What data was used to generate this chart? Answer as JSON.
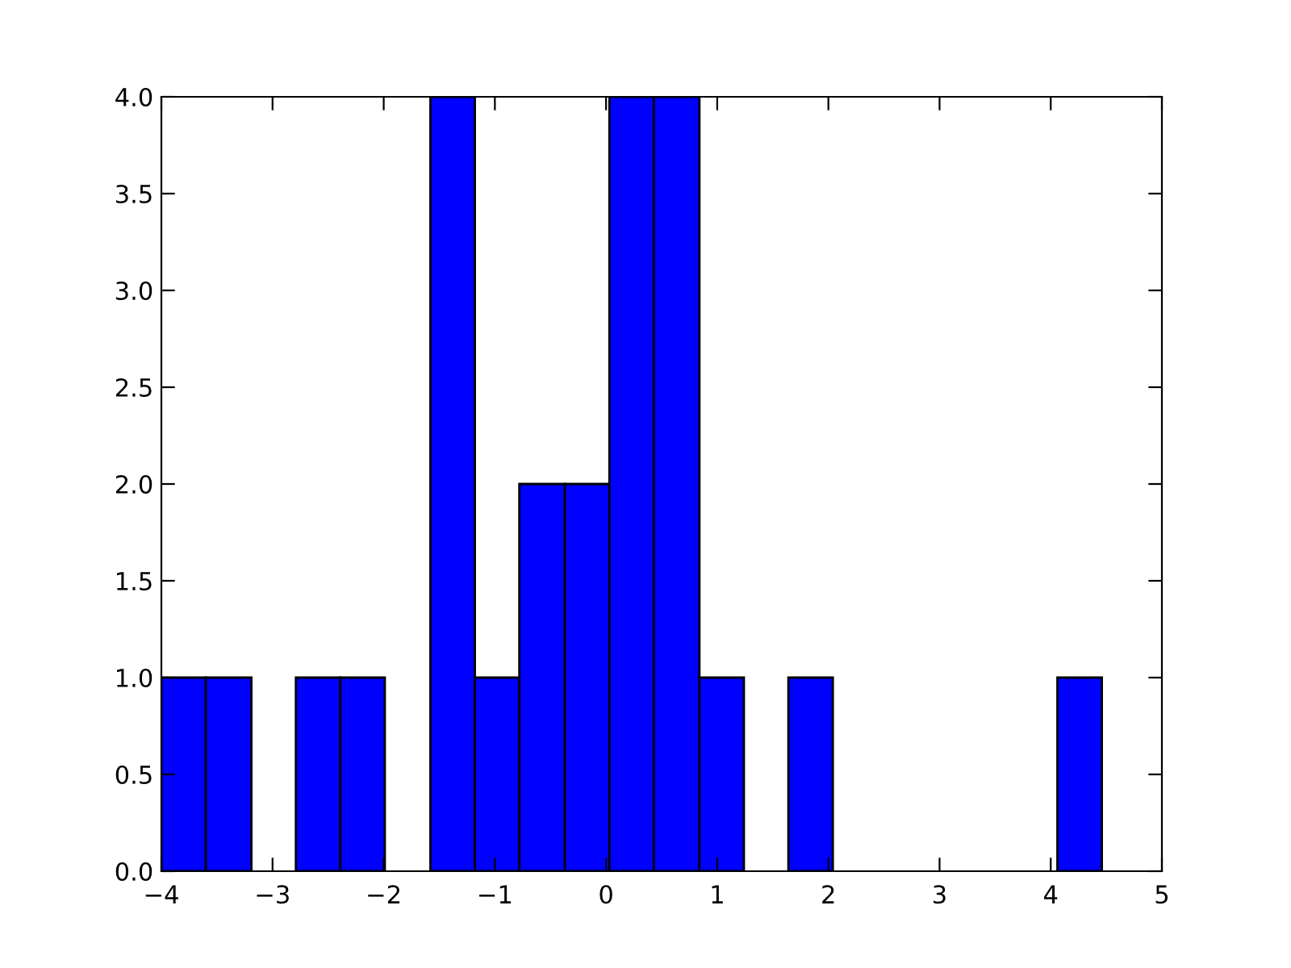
{
  "chart_data": {
    "type": "histogram",
    "bins": [
      -4,
      -3.6,
      -3.19,
      -2.79,
      -2.39,
      -1.99,
      -1.58,
      -1.18,
      -0.78,
      -0.37,
      0.03,
      0.43,
      0.84,
      1.24,
      1.64,
      2.04,
      4.06,
      4.46
    ],
    "values": [
      1,
      1,
      0,
      1,
      1,
      0,
      4,
      1,
      2,
      2,
      4,
      4,
      1,
      0,
      1,
      0,
      1
    ],
    "color": "#0000ff",
    "xlim": [
      -4,
      5
    ],
    "xticks": [
      {
        "value": -4,
        "label": "−4"
      },
      {
        "value": -3,
        "label": "−3"
      },
      {
        "value": -2,
        "label": "−2"
      },
      {
        "value": -1,
        "label": "−1"
      },
      0,
      1,
      2,
      3,
      4,
      5
    ],
    "ylim": [
      0,
      4
    ],
    "yticks": [
      {
        "value": 0,
        "label": "0.0"
      },
      {
        "value": 0.5,
        "label": "0.5"
      },
      {
        "value": 1,
        "label": "1.0"
      },
      {
        "value": 1.5,
        "label": "1.5"
      },
      {
        "value": 2,
        "label": "2.0"
      },
      {
        "value": 2.5,
        "label": "2.5"
      },
      {
        "value": 3,
        "label": "3.0"
      },
      {
        "value": 3.5,
        "label": "3.5"
      },
      {
        "value": 4,
        "label": "4.0"
      }
    ],
    "grid": false,
    "legend": false
  }
}
